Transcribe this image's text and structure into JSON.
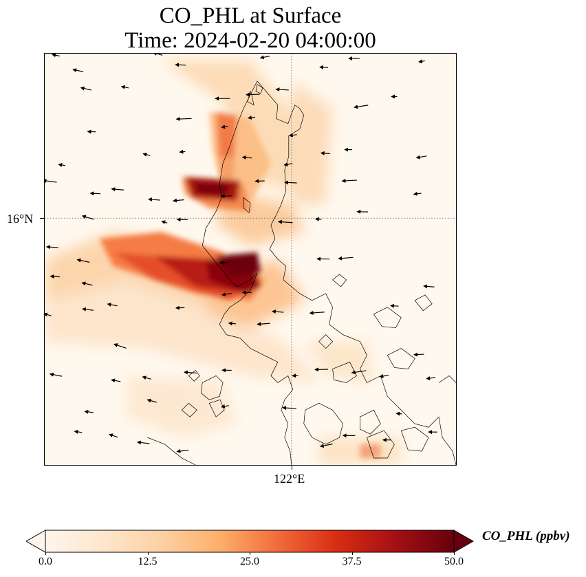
{
  "title": {
    "line1": "CO_PHL at Surface",
    "line2": "Time: 2024-02-20 04:00:00"
  },
  "axes": {
    "lat_label": "16°N",
    "lon_label": "122°E"
  },
  "colorbar": {
    "label": "CO_PHL (ppbv)",
    "ticks": [
      "0.0",
      "12.5",
      "25.0",
      "37.5",
      "50.0"
    ],
    "min": 0,
    "max": 50,
    "extend": "both",
    "colormap": [
      "#fff5eb",
      "#fee6ce",
      "#fdd0a2",
      "#fdae6b",
      "#f16a3a",
      "#d72d12",
      "#a50f15",
      "#67000d"
    ]
  },
  "map": {
    "gridlines": "dotted",
    "coastlines": true,
    "wind_vectors": true
  }
}
